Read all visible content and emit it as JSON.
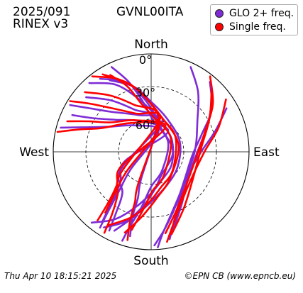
{
  "header": {
    "date": "2025/091",
    "format": "RINEX v3",
    "station": "GVNL00ITA"
  },
  "legend": [
    {
      "label": "GLO 2+ freq.",
      "color": "#7f2bd6"
    },
    {
      "label": "Single freq.",
      "color": "#ff0000"
    }
  ],
  "footer": {
    "timestamp": "Thu Apr 10 18:15:21 2025",
    "credit": "©EPN CB (www.epncb.eu)"
  },
  "chart_data": {
    "type": "scatter",
    "projection": "polar-skyplot",
    "directions": {
      "north": "North",
      "south": "South",
      "east": "East",
      "west": "West"
    },
    "elevation_rings": [
      {
        "elevation": 0,
        "label": "0°",
        "style": "solid"
      },
      {
        "elevation": 30,
        "label": "30°",
        "style": "dashed"
      },
      {
        "elevation": 60,
        "label": "60°",
        "style": "dashed"
      }
    ],
    "radial_axis": "90 - elevation (deg)",
    "series": [
      {
        "name": "GLO 2+ freq.",
        "color": "#7f2bd6",
        "tracks": [
          [
            [
              325,
              8
            ],
            [
              340,
              22
            ],
            [
              352,
              40
            ],
            [
              5,
              55
            ],
            [
              22,
              66
            ],
            [
              90,
              70
            ],
            [
              158,
              66
            ],
            [
              175,
              55
            ],
            [
              188,
              40
            ],
            [
              200,
              22
            ],
            [
              212,
              8
            ]
          ],
          [
            [
              318,
              5
            ],
            [
              332,
              20
            ],
            [
              345,
              38
            ],
            [
              0,
              52
            ],
            [
              20,
              62
            ],
            [
              60,
              68
            ],
            [
              120,
              68
            ],
            [
              160,
              62
            ],
            [
              180,
              52
            ],
            [
              195,
              38
            ],
            [
              208,
              20
            ],
            [
              220,
              5
            ]
          ],
          [
            [
              330,
              14
            ],
            [
              345,
              28
            ],
            [
              0,
              44
            ],
            [
              25,
              56
            ],
            [
              70,
              62
            ],
            [
              120,
              62
            ],
            [
              155,
              56
            ],
            [
              180,
              44
            ],
            [
              195,
              28
            ],
            [
              205,
              10
            ]
          ],
          [
            [
              40,
              6
            ],
            [
              55,
              22
            ],
            [
              70,
              40
            ],
            [
              95,
              52
            ],
            [
              130,
              50
            ],
            [
              155,
              36
            ],
            [
              170,
              18
            ],
            [
              178,
              4
            ]
          ],
          [
            [
              300,
              4
            ],
            [
              305,
              20
            ],
            [
              315,
              38
            ],
            [
              340,
              54
            ],
            [
              20,
              60
            ],
            [
              240,
              58
            ],
            [
              215,
              44
            ],
            [
              210,
              26
            ],
            [
              208,
              8
            ]
          ],
          [
            [
              295,
              10
            ],
            [
              300,
              28
            ],
            [
              312,
              46
            ],
            [
              340,
              60
            ],
            [
              40,
              66
            ],
            [
              250,
              64
            ],
            [
              225,
              50
            ],
            [
              218,
              30
            ],
            [
              215,
              12
            ]
          ],
          [
            [
              60,
              10
            ],
            [
              72,
              28
            ],
            [
              90,
              44
            ],
            [
              120,
              50
            ],
            [
              145,
              42
            ],
            [
              160,
              26
            ],
            [
              168,
              8
            ]
          ],
          [
            [
              25,
              4
            ],
            [
              38,
              20
            ],
            [
              55,
              38
            ],
            [
              90,
              50
            ],
            [
              140,
              46
            ],
            [
              162,
              30
            ],
            [
              172,
              14
            ],
            [
              176,
              2
            ]
          ],
          [
            [
              335,
              4
            ],
            [
              342,
              22
            ],
            [
              350,
              42
            ],
            [
              5,
              62
            ],
            [
              60,
              72
            ],
            [
              150,
              70
            ],
            [
              180,
              58
            ],
            [
              190,
              38
            ],
            [
              196,
              18
            ],
            [
              198,
              4
            ]
          ],
          [
            [
              285,
              4
            ],
            [
              290,
              24
            ],
            [
              300,
              44
            ],
            [
              330,
              62
            ],
            [
              20,
              70
            ],
            [
              230,
              66
            ],
            [
              220,
              46
            ],
            [
              216,
              24
            ],
            [
              214,
              6
            ]
          ],
          [
            [
              48,
              14
            ],
            [
              64,
              32
            ],
            [
              92,
              48
            ],
            [
              126,
              48
            ],
            [
              150,
              34
            ],
            [
              164,
              16
            ]
          ],
          [
            [
              310,
              12
            ],
            [
              322,
              30
            ],
            [
              338,
              48
            ],
            [
              10,
              62
            ],
            [
              200,
              62
            ],
            [
              196,
              46
            ],
            [
              196,
              28
            ],
            [
              194,
              10
            ]
          ]
        ]
      },
      {
        "name": "Single freq.",
        "color": "#ff0000",
        "tracks": [
          [
            [
              322,
              2
            ],
            [
              335,
              16
            ],
            [
              348,
              32
            ],
            [
              2,
              48
            ],
            [
              20,
              58
            ],
            [
              60,
              64
            ],
            [
              130,
              64
            ],
            [
              165,
              56
            ],
            [
              182,
              44
            ],
            [
              196,
              28
            ],
            [
              210,
              12
            ]
          ],
          [
            [
              328,
              6
            ],
            [
              342,
              24
            ],
            [
              356,
              42
            ],
            [
              15,
              56
            ],
            [
              75,
              64
            ],
            [
              145,
              60
            ],
            [
              172,
              48
            ],
            [
              188,
              30
            ],
            [
              198,
              12
            ]
          ],
          [
            [
              302,
              2
            ],
            [
              308,
              18
            ],
            [
              318,
              36
            ],
            [
              338,
              52
            ],
            [
              15,
              58
            ],
            [
              235,
              56
            ],
            [
              218,
              40
            ],
            [
              212,
              22
            ],
            [
              210,
              4
            ]
          ],
          [
            [
              38,
              2
            ],
            [
              52,
              18
            ],
            [
              68,
              36
            ],
            [
              95,
              48
            ],
            [
              132,
              46
            ],
            [
              156,
              32
            ],
            [
              170,
              14
            ]
          ],
          [
            [
              290,
              8
            ],
            [
              296,
              26
            ],
            [
              306,
              44
            ],
            [
              335,
              58
            ],
            [
              30,
              64
            ],
            [
              245,
              60
            ],
            [
              226,
              46
            ],
            [
              220,
              28
            ],
            [
              218,
              10
            ]
          ],
          [
            [
              55,
              6
            ],
            [
              70,
              24
            ],
            [
              88,
              40
            ],
            [
              118,
              46
            ],
            [
              146,
              38
            ],
            [
              162,
              22
            ],
            [
              170,
              6
            ]
          ],
          [
            [
              332,
              10
            ],
            [
              340,
              26
            ],
            [
              348,
              44
            ],
            [
              4,
              58
            ],
            [
              55,
              68
            ],
            [
              150,
              66
            ],
            [
              178,
              54
            ],
            [
              188,
              36
            ],
            [
              194,
              16
            ]
          ],
          [
            [
              282,
              2
            ],
            [
              287,
              20
            ],
            [
              296,
              40
            ],
            [
              326,
              58
            ],
            [
              18,
              66
            ],
            [
              232,
              62
            ],
            [
              222,
              42
            ],
            [
              217,
              20
            ]
          ],
          [
            [
              44,
              10
            ],
            [
              60,
              28
            ],
            [
              86,
              44
            ],
            [
              124,
              44
            ],
            [
              150,
              30
            ],
            [
              166,
              12
            ]
          ],
          [
            [
              312,
              8
            ],
            [
              324,
              26
            ],
            [
              340,
              44
            ],
            [
              12,
              58
            ],
            [
              202,
              58
            ],
            [
              198,
              42
            ],
            [
              197,
              24
            ],
            [
              195,
              6
            ]
          ]
        ]
      }
    ]
  }
}
